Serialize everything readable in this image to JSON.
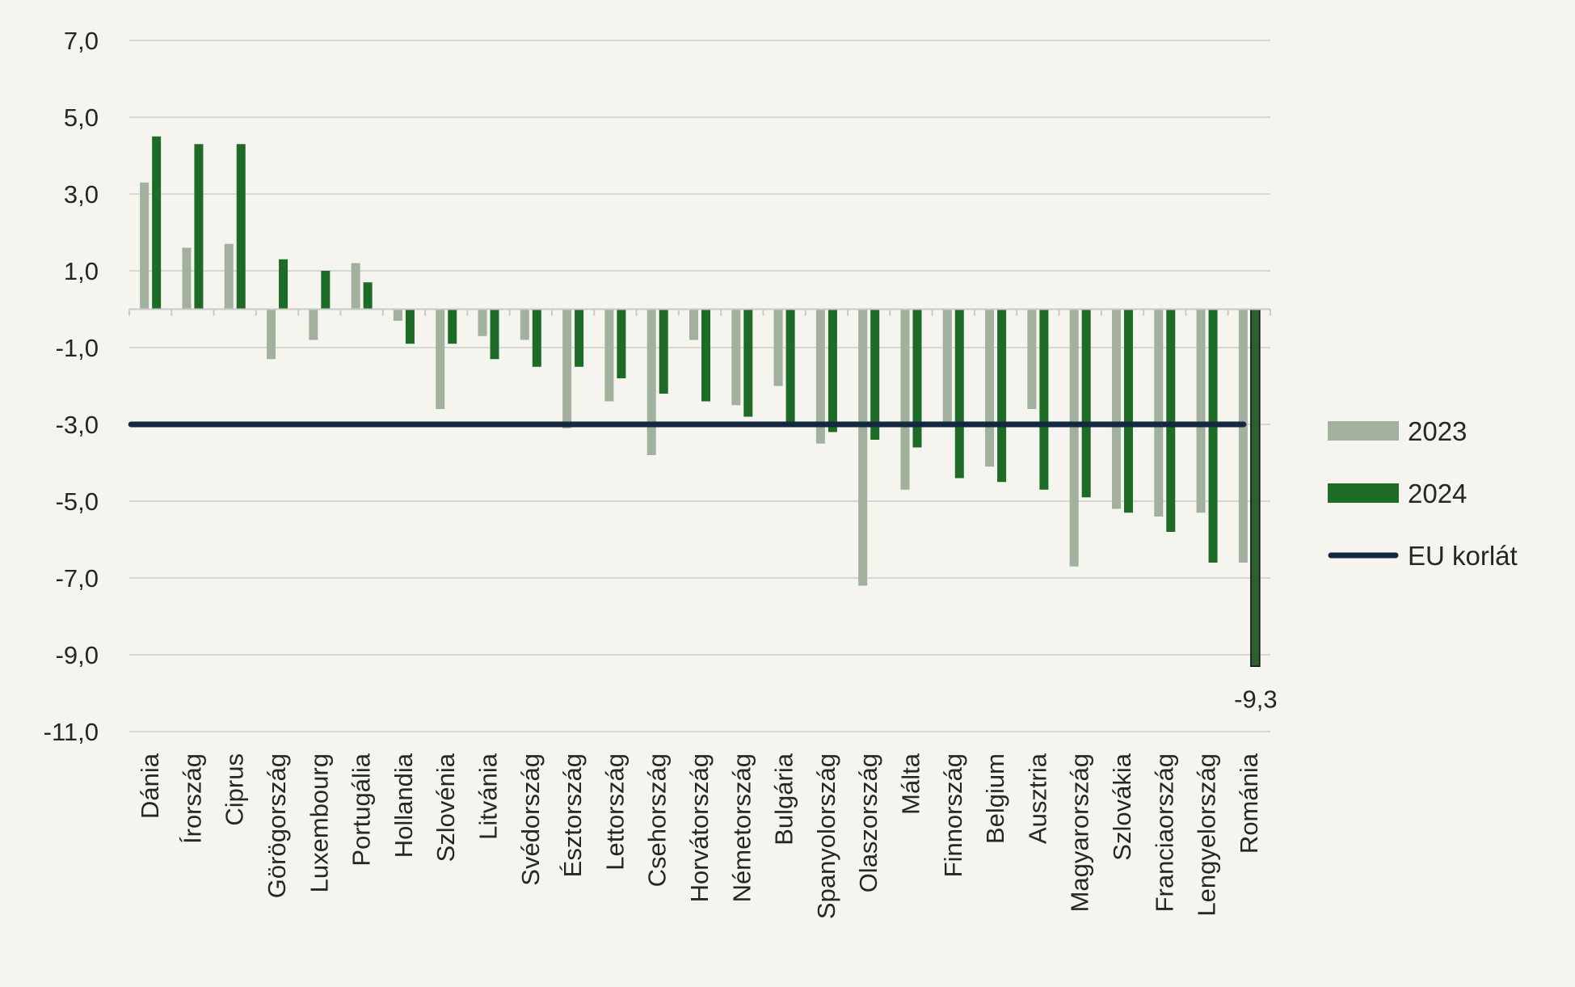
{
  "chart_data": {
    "type": "bar",
    "categories": [
      "Dánia",
      "Írország",
      "Ciprus",
      "Görögország",
      "Luxembourg",
      "Portugália",
      "Hollandia",
      "Szlovénia",
      "Litvánia",
      "Svédország",
      "Észtország",
      "Lettország",
      "Csehország",
      "Horvátország",
      "Németország",
      "Bulgária",
      "Spanyolország",
      "Olaszország",
      "Málta",
      "Finnország",
      "Belgium",
      "Ausztria",
      "Magyarország",
      "Szlovákia",
      "Franciaország",
      "Lengyelország",
      "Románia"
    ],
    "series": [
      {
        "name": "2023",
        "color": "#a2b09e",
        "values": [
          3.3,
          1.6,
          1.7,
          -1.3,
          -0.8,
          1.2,
          -0.3,
          -2.6,
          -0.7,
          -0.8,
          -3.1,
          -2.4,
          -3.8,
          -0.8,
          -2.5,
          -2.0,
          -3.5,
          -7.2,
          -4.7,
          -3.0,
          -4.1,
          -2.6,
          -6.7,
          -5.2,
          -5.4,
          -5.3,
          -6.6
        ]
      },
      {
        "name": "2024",
        "color": "#1d6b27",
        "values": [
          4.5,
          4.3,
          4.3,
          1.3,
          1.0,
          0.7,
          -0.9,
          -0.9,
          -1.3,
          -1.5,
          -1.5,
          -1.8,
          -2.2,
          -2.4,
          -2.8,
          -3.0,
          -3.2,
          -3.4,
          -3.6,
          -4.4,
          -4.5,
          -4.7,
          -4.9,
          -5.3,
          -5.8,
          -6.6,
          -9.3
        ]
      }
    ],
    "reference_line": {
      "name": "EU korlát",
      "value": -3.0,
      "color": "#142841"
    },
    "y_ticks": [
      "7,0",
      "5,0",
      "3,0",
      "1,0",
      "-1,0",
      "-3,0",
      "-5,0",
      "-7,0",
      "-9,0",
      "-11,0"
    ],
    "y_tick_values": [
      7,
      5,
      3,
      1,
      -1,
      -3,
      -5,
      -7,
      -9,
      -11
    ],
    "ylim": [
      -11,
      7
    ],
    "grid": true,
    "legend_position": "right",
    "data_labels": [
      {
        "category": "Románia",
        "series": "2024",
        "text": "-9,3"
      }
    ],
    "highlight_color": "#2e5e33"
  }
}
